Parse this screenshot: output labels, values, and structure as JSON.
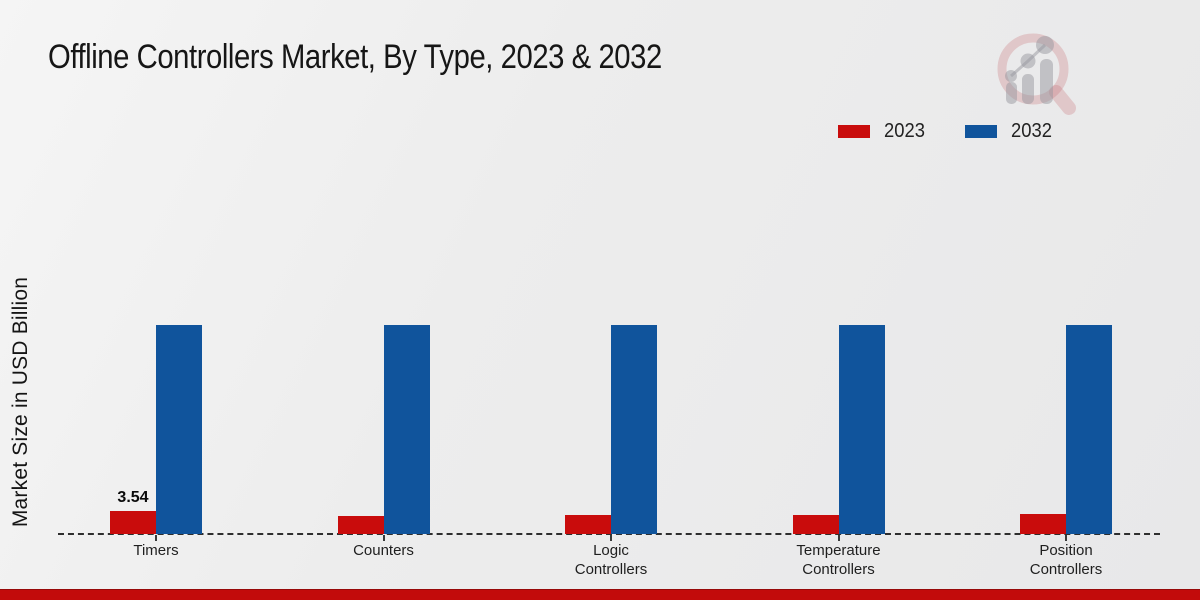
{
  "header": {
    "title": "Offline Controllers Market, By Type, 2023 & 2032"
  },
  "legend": {
    "items": [
      {
        "label": "2023",
        "color": "#c90c0c"
      },
      {
        "label": "2032",
        "color": "#10549c"
      }
    ]
  },
  "watermark": {
    "icon": "magnifier-growth-chart-logo",
    "ring_color": "rgba(196,106,115,0.28)",
    "bar_color": "rgba(152,152,160,0.50)"
  },
  "footer": {
    "stripe_color": "#c20b0b"
  },
  "colors": {
    "background": "#ececec",
    "baseline": "#2e2e2e",
    "series_2023": "#c90c0c",
    "series_2032": "#10549c"
  },
  "chart_data": {
    "type": "bar",
    "title": "Offline Controllers Market, By Type, 2023 & 2032",
    "xlabel": "",
    "ylabel": "Market Size in USD Billion",
    "categories": [
      "Timers",
      "Counters",
      "Logic Controllers",
      "Temperature Controllers",
      "Position Controllers"
    ],
    "categories_display": [
      [
        "Timers"
      ],
      [
        "Counters"
      ],
      [
        "Logic",
        "Controllers"
      ],
      [
        "Temperature",
        "Controllers"
      ],
      [
        "Position",
        "Controllers"
      ]
    ],
    "series": [
      {
        "name": "2023",
        "color": "#c90c0c",
        "values": [
          3.54,
          2.8,
          2.9,
          2.9,
          3.1
        ]
      },
      {
        "name": "2032",
        "color": "#10549c",
        "values": [
          32.2,
          32.2,
          32.2,
          32.2,
          32.2
        ]
      }
    ],
    "data_labels": [
      {
        "series": "2023",
        "category": "Timers",
        "text": "3.54"
      }
    ],
    "ylim": [
      0,
      35
    ],
    "grid": false,
    "legend_position": "top-right",
    "baseline_style": "dashed",
    "y_axis_ticks_shown": false
  }
}
